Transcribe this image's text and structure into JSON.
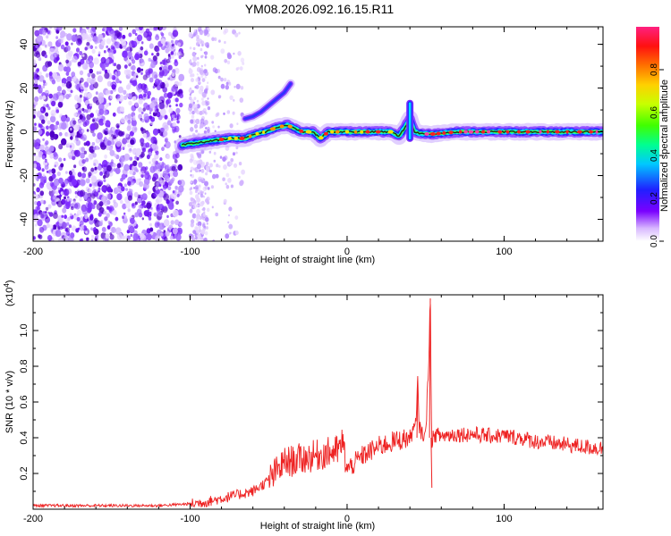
{
  "title": "YM08.2026.092.16.15.R11",
  "chart_data": [
    {
      "type": "heatmap",
      "name": "spectrogram",
      "xlabel": "Height of straight line (km)",
      "ylabel": "Frequency (Hz)",
      "xlim": [
        -200,
        163
      ],
      "ylim": [
        -50,
        48
      ],
      "xticks": [
        -200,
        -100,
        0,
        100
      ],
      "xtick_labels": [
        "-200",
        "-100",
        "0",
        "100"
      ],
      "yticks": [
        -40,
        -20,
        0,
        20,
        40
      ],
      "ytick_labels": [
        "-40",
        "-20",
        "0",
        "20",
        "40"
      ],
      "colorbar": {
        "label": "Normalized spectral amplitude",
        "range": [
          0.0,
          1.0
        ],
        "ticks": [
          0.0,
          0.2,
          0.4,
          0.6,
          0.8
        ],
        "tick_labels": [
          "0.0",
          "0.2",
          "0.4",
          "0.6",
          "0.8"
        ]
      },
      "ridge": {
        "x": [
          -105,
          -95,
          -85,
          -75,
          -65,
          -58,
          -52,
          -45,
          -38,
          -32,
          -28,
          -22,
          -17,
          -12,
          -5,
          0,
          10,
          20,
          28,
          33,
          37,
          40,
          43,
          48,
          55,
          70,
          90,
          110,
          130,
          150,
          163
        ],
        "y": [
          -6,
          -5,
          -4,
          -3,
          -3,
          -1,
          0,
          2,
          3,
          1,
          0,
          0,
          -3,
          0,
          0,
          0,
          0,
          0,
          0,
          -2,
          2,
          6,
          0,
          -1,
          -1,
          0,
          0,
          0,
          0,
          0,
          0
        ]
      },
      "branch": {
        "x": [
          -65,
          -60,
          -55,
          -50,
          -45,
          -40,
          -36
        ],
        "y": [
          6,
          7,
          9,
          12,
          15,
          18,
          22
        ]
      },
      "spike": {
        "x": 40,
        "y_range": [
          -3,
          13
        ]
      }
    },
    {
      "type": "line",
      "name": "snr",
      "xlabel": "Height of straight line (km)",
      "ylabel": "SNR (10 * v/v)",
      "scale_label_base": "(x10",
      "scale_label_exp": "4",
      "scale_label_end": ")",
      "xlim": [
        -200,
        163
      ],
      "ylim": [
        0,
        1.2
      ],
      "xticks": [
        -200,
        -100,
        0,
        100
      ],
      "xtick_labels": [
        "-200",
        "-100",
        "0",
        "100"
      ],
      "yticks": [
        0.2,
        0.4,
        0.6,
        0.8,
        1.0
      ],
      "ytick_labels": [
        "0.2",
        "0.4",
        "0.6",
        "0.8",
        "1.0"
      ],
      "series": [
        {
          "name": "SNR",
          "color": "#ee2222",
          "x": [
            -200,
            -180,
            -160,
            -140,
            -120,
            -100,
            -90,
            -80,
            -70,
            -60,
            -50,
            -40,
            -30,
            -20,
            -10,
            -5,
            -3,
            0,
            10,
            20,
            30,
            40,
            44,
            45,
            46,
            50,
            52,
            53,
            54,
            55,
            60,
            70,
            80,
            90,
            100,
            110,
            120,
            130,
            140,
            150,
            163
          ],
          "y": [
            0.02,
            0.02,
            0.02,
            0.02,
            0.02,
            0.03,
            0.04,
            0.06,
            0.08,
            0.1,
            0.16,
            0.26,
            0.28,
            0.3,
            0.32,
            0.33,
            0.38,
            0.22,
            0.3,
            0.35,
            0.38,
            0.4,
            0.48,
            0.72,
            0.45,
            0.4,
            0.85,
            1.18,
            0.3,
            0.42,
            0.41,
            0.42,
            0.42,
            0.41,
            0.41,
            0.4,
            0.38,
            0.37,
            0.36,
            0.35,
            0.34
          ]
        }
      ]
    }
  ]
}
